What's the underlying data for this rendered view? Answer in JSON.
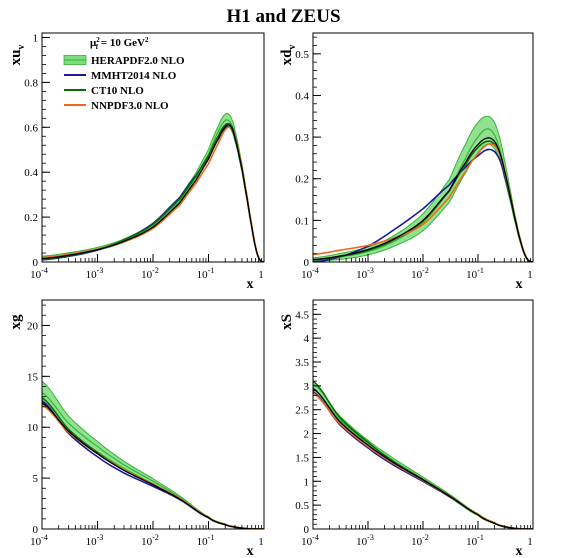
{
  "figure": {
    "title": "H1 and ZEUS",
    "scale_label": "μ²f = 10 GeV²",
    "scale_label_parts": {
      "mu": "μ",
      "sup": "2",
      "sub": "f",
      "rest": " = 10 GeV",
      "sup2": "2"
    }
  },
  "colors": {
    "herapdf_band": "#7fdc7f",
    "herapdf_line": "#33b533",
    "mmht": "#1a1aa0",
    "ct10": "#0b6b0b",
    "nnpdf": "#ee6a1a",
    "black": "#000000"
  },
  "chart_data": [
    {
      "id": "xuv",
      "type": "line",
      "ylabel": "xu",
      "ylabel_sub": "v",
      "xlabel": "x",
      "xscale": "log",
      "xlim": [
        0.0001,
        1
      ],
      "ylim": [
        0,
        1.02
      ],
      "yticks": [
        0,
        0.2,
        0.4,
        0.6,
        0.8,
        1
      ],
      "ytick_labels": [
        "0",
        "0.2",
        "0.4",
        "0.6",
        "0.8",
        "1"
      ],
      "xtick_labels": [
        {
          "base": "10",
          "exp": "-4"
        },
        {
          "base": "10",
          "exp": "-3"
        },
        {
          "base": "10",
          "exp": "-2"
        },
        {
          "base": "10",
          "exp": "-1"
        },
        {
          "base": "1",
          "exp": ""
        }
      ],
      "legend": {
        "position": "top-left",
        "entries": [
          "HERAPDF2.0 NLO",
          "MMHT2014 NLO",
          "CT10 NLO",
          "NNPDF3.0 NLO"
        ]
      },
      "x": [
        0.0001,
        0.0003,
        0.001,
        0.003,
        0.01,
        0.03,
        0.06,
        0.1,
        0.15,
        0.2,
        0.25,
        0.3,
        0.4,
        0.5,
        0.6,
        0.7,
        0.8,
        0.9,
        1.0
      ],
      "series": [
        {
          "name": "HERAPDF2.0 NLO",
          "role": "band",
          "values": [
            0.02,
            0.035,
            0.058,
            0.095,
            0.16,
            0.27,
            0.38,
            0.48,
            0.58,
            0.63,
            0.62,
            0.56,
            0.42,
            0.28,
            0.16,
            0.07,
            0.02,
            0.004,
            0.0
          ],
          "lower": [
            0.016,
            0.03,
            0.052,
            0.088,
            0.15,
            0.255,
            0.362,
            0.458,
            0.555,
            0.6,
            0.593,
            0.537,
            0.403,
            0.268,
            0.152,
            0.065,
            0.018,
            0.003,
            0.0
          ],
          "upper": [
            0.026,
            0.041,
            0.065,
            0.103,
            0.172,
            0.286,
            0.398,
            0.502,
            0.605,
            0.658,
            0.648,
            0.585,
            0.438,
            0.293,
            0.17,
            0.076,
            0.023,
            0.005,
            0.0
          ]
        },
        {
          "name": "MMHT2014 NLO",
          "values": [
            0.01,
            0.025,
            0.053,
            0.098,
            0.172,
            0.286,
            0.386,
            0.466,
            0.548,
            0.595,
            0.597,
            0.55,
            0.415,
            0.275,
            0.157,
            0.068,
            0.019,
            0.003,
            0.0
          ]
        },
        {
          "name": "CT10 NLO",
          "values": [
            0.012,
            0.028,
            0.055,
            0.098,
            0.168,
            0.28,
            0.383,
            0.473,
            0.56,
            0.61,
            0.61,
            0.56,
            0.422,
            0.281,
            0.161,
            0.07,
            0.02,
            0.004,
            0.0
          ]
        },
        {
          "name": "NNPDF3.0 NLO",
          "values": [
            0.02,
            0.034,
            0.057,
            0.09,
            0.15,
            0.252,
            0.352,
            0.438,
            0.528,
            0.588,
            0.598,
            0.557,
            0.424,
            0.284,
            0.164,
            0.072,
            0.021,
            0.004,
            0.0
          ]
        },
        {
          "name": "",
          "values": [
            0.015,
            0.03,
            0.055,
            0.092,
            0.155,
            0.262,
            0.366,
            0.458,
            0.548,
            0.602,
            0.605,
            0.553,
            0.418,
            0.279,
            0.16,
            0.069,
            0.02,
            0.003,
            0.0
          ]
        }
      ]
    },
    {
      "id": "xdv",
      "type": "line",
      "ylabel": "xd",
      "ylabel_sub": "v",
      "xlabel": "x",
      "xscale": "log",
      "xlim": [
        0.0001,
        1
      ],
      "ylim": [
        0,
        0.55
      ],
      "yticks": [
        0,
        0.1,
        0.2,
        0.3,
        0.4,
        0.5
      ],
      "ytick_labels": [
        "0",
        "0.1",
        "0.2",
        "0.3",
        "0.4",
        "0.5"
      ],
      "xtick_labels": [
        {
          "base": "10",
          "exp": "-4"
        },
        {
          "base": "10",
          "exp": "-3"
        },
        {
          "base": "10",
          "exp": "-2"
        },
        {
          "base": "10",
          "exp": "-1"
        },
        {
          "base": "1",
          "exp": ""
        }
      ],
      "x": [
        0.0001,
        0.0003,
        0.001,
        0.003,
        0.01,
        0.03,
        0.06,
        0.1,
        0.15,
        0.2,
        0.25,
        0.3,
        0.4,
        0.5,
        0.6,
        0.7,
        0.8,
        0.9,
        1.0
      ],
      "series": [
        {
          "name": "HERAPDF2.0 NLO",
          "role": "band",
          "values": [
            0.005,
            0.012,
            0.025,
            0.05,
            0.095,
            0.17,
            0.25,
            0.3,
            0.32,
            0.305,
            0.27,
            0.225,
            0.15,
            0.09,
            0.048,
            0.02,
            0.006,
            0.001,
            0.0
          ],
          "lower": [
            0.002,
            0.006,
            0.017,
            0.038,
            0.075,
            0.143,
            0.215,
            0.262,
            0.283,
            0.272,
            0.243,
            0.203,
            0.137,
            0.082,
            0.043,
            0.017,
            0.005,
            0.001,
            0.0
          ],
          "upper": [
            0.01,
            0.02,
            0.036,
            0.064,
            0.116,
            0.198,
            0.284,
            0.335,
            0.35,
            0.335,
            0.297,
            0.247,
            0.163,
            0.098,
            0.053,
            0.023,
            0.007,
            0.002,
            0.0
          ]
        },
        {
          "name": "MMHT2014 NLO",
          "values": [
            0.0,
            0.012,
            0.038,
            0.078,
            0.128,
            0.185,
            0.228,
            0.255,
            0.27,
            0.265,
            0.245,
            0.21,
            0.145,
            0.088,
            0.047,
            0.02,
            0.006,
            0.001,
            0.0
          ]
        },
        {
          "name": "CT10 NLO",
          "values": [
            0.005,
            0.013,
            0.028,
            0.054,
            0.098,
            0.17,
            0.235,
            0.275,
            0.29,
            0.283,
            0.258,
            0.22,
            0.148,
            0.09,
            0.048,
            0.02,
            0.006,
            0.001,
            0.0
          ]
        },
        {
          "name": "NNPDF3.0 NLO",
          "values": [
            0.018,
            0.028,
            0.04,
            0.058,
            0.09,
            0.155,
            0.218,
            0.26,
            0.282,
            0.28,
            0.258,
            0.22,
            0.15,
            0.092,
            0.05,
            0.022,
            0.007,
            0.001,
            0.0
          ]
        },
        {
          "name": "",
          "values": [
            0.006,
            0.014,
            0.03,
            0.056,
            0.1,
            0.172,
            0.24,
            0.282,
            0.298,
            0.29,
            0.262,
            0.222,
            0.149,
            0.09,
            0.048,
            0.02,
            0.006,
            0.001,
            0.0
          ]
        }
      ]
    },
    {
      "id": "xg",
      "type": "line",
      "ylabel": "xg",
      "ylabel_sub": "",
      "xlabel": "x",
      "xscale": "log",
      "xlim": [
        0.0001,
        1
      ],
      "ylim": [
        0,
        22.5
      ],
      "yticks": [
        0,
        5,
        10,
        15,
        20
      ],
      "ytick_labels": [
        "0",
        "5",
        "10",
        "15",
        "20"
      ],
      "xtick_labels": [
        {
          "base": "10",
          "exp": "-4"
        },
        {
          "base": "10",
          "exp": "-3"
        },
        {
          "base": "10",
          "exp": "-2"
        },
        {
          "base": "10",
          "exp": "-1"
        },
        {
          "base": "1",
          "exp": ""
        }
      ],
      "x": [
        0.0001,
        0.0003,
        0.001,
        0.003,
        0.01,
        0.03,
        0.1,
        0.2,
        0.3,
        0.5,
        0.7,
        1.0
      ],
      "series": [
        {
          "name": "HERAPDF2.0 NLO",
          "role": "band",
          "values": [
            13.4,
            10.4,
            8.1,
            6.3,
            4.7,
            3.1,
            1.15,
            0.45,
            0.2,
            0.04,
            0.01,
            0.0
          ],
          "lower": [
            12.3,
            9.7,
            7.6,
            5.95,
            4.45,
            2.95,
            1.08,
            0.4,
            0.17,
            0.03,
            0.005,
            0.0
          ],
          "upper": [
            14.5,
            11.1,
            8.6,
            6.65,
            4.95,
            3.25,
            1.22,
            0.5,
            0.23,
            0.05,
            0.015,
            0.0
          ]
        },
        {
          "name": "MMHT2014 NLO",
          "values": [
            12.6,
            9.4,
            7.1,
            5.5,
            4.2,
            2.9,
            1.1,
            0.42,
            0.18,
            0.03,
            0.005,
            0.0
          ]
        },
        {
          "name": "CT10 NLO",
          "values": [
            12.9,
            9.8,
            7.5,
            5.8,
            4.4,
            2.95,
            1.12,
            0.44,
            0.19,
            0.04,
            0.008,
            0.0
          ]
        },
        {
          "name": "NNPDF3.0 NLO",
          "values": [
            12.2,
            9.5,
            7.4,
            5.8,
            4.4,
            3.0,
            1.14,
            0.46,
            0.2,
            0.04,
            0.01,
            0.0
          ]
        },
        {
          "name": "",
          "values": [
            12.4,
            9.6,
            7.4,
            5.75,
            4.35,
            2.95,
            1.12,
            0.44,
            0.19,
            0.04,
            0.008,
            0.0
          ]
        }
      ]
    },
    {
      "id": "xS",
      "type": "line",
      "ylabel": "xS",
      "ylabel_sub": "",
      "xlabel": "x",
      "xscale": "log",
      "xlim": [
        0.0001,
        1
      ],
      "ylim": [
        0,
        4.8
      ],
      "yticks": [
        0,
        0.5,
        1,
        1.5,
        2,
        2.5,
        3,
        3.5,
        4,
        4.5
      ],
      "ytick_labels": [
        "0",
        "0.5",
        "1",
        "1.5",
        "2",
        "2.5",
        "3",
        "3.5",
        "4",
        "4.5"
      ],
      "xtick_labels": [
        {
          "base": "10",
          "exp": "-4"
        },
        {
          "base": "10",
          "exp": "-3"
        },
        {
          "base": "10",
          "exp": "-2"
        },
        {
          "base": "10",
          "exp": "-1"
        },
        {
          "base": "1",
          "exp": ""
        }
      ],
      "x": [
        0.0001,
        0.0003,
        0.001,
        0.003,
        0.01,
        0.03,
        0.1,
        0.2,
        0.3,
        0.5,
        0.7,
        1.0
      ],
      "series": [
        {
          "name": "HERAPDF2.0 NLO",
          "role": "band",
          "values": [
            2.95,
            2.3,
            1.8,
            1.42,
            1.05,
            0.7,
            0.3,
            0.12,
            0.05,
            0.01,
            0.002,
            0.0
          ],
          "lower": [
            2.85,
            2.22,
            1.74,
            1.37,
            1.01,
            0.67,
            0.28,
            0.11,
            0.04,
            0.008,
            0.001,
            0.0
          ],
          "upper": [
            3.05,
            2.38,
            1.86,
            1.47,
            1.09,
            0.73,
            0.32,
            0.13,
            0.06,
            0.012,
            0.003,
            0.0
          ]
        },
        {
          "name": "MMHT2014 NLO",
          "values": [
            2.88,
            2.2,
            1.7,
            1.33,
            1.0,
            0.68,
            0.31,
            0.13,
            0.05,
            0.01,
            0.002,
            0.0
          ]
        },
        {
          "name": "CT10 NLO",
          "values": [
            3.1,
            2.35,
            1.82,
            1.4,
            1.04,
            0.7,
            0.31,
            0.13,
            0.05,
            0.01,
            0.002,
            0.0
          ]
        },
        {
          "name": "NNPDF3.0 NLO",
          "values": [
            2.85,
            2.22,
            1.73,
            1.36,
            1.02,
            0.69,
            0.31,
            0.13,
            0.05,
            0.01,
            0.002,
            0.0
          ]
        },
        {
          "name": "",
          "values": [
            2.95,
            2.26,
            1.76,
            1.38,
            1.03,
            0.69,
            0.3,
            0.12,
            0.05,
            0.01,
            0.002,
            0.0
          ]
        }
      ]
    }
  ]
}
